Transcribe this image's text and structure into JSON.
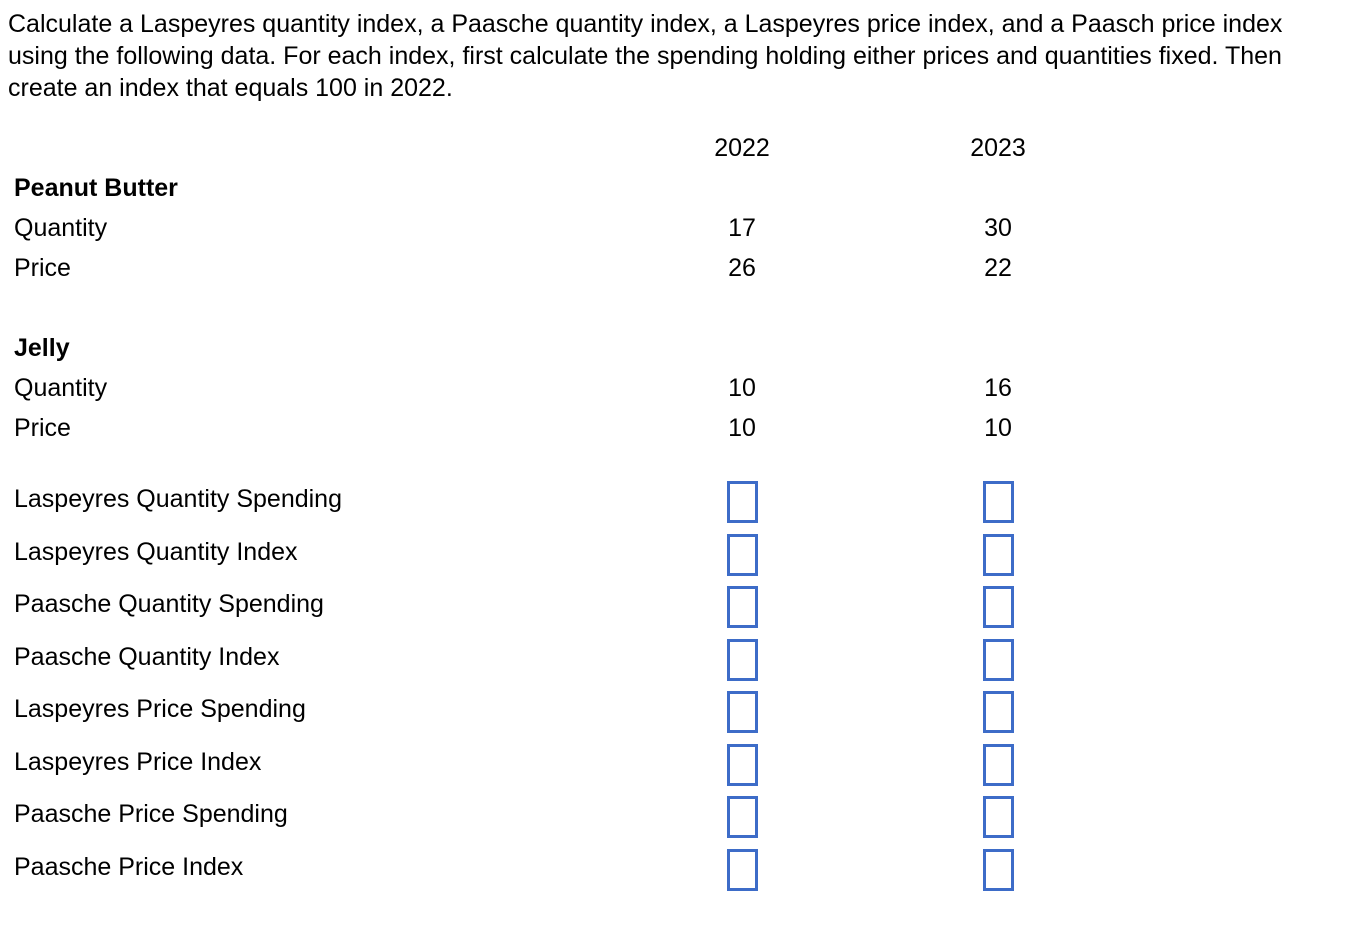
{
  "intro": {
    "line1": "Calculate a Laspeyres quantity index, a Paasche quantity index, a Laspeyres price index, and a Paasch price index",
    "line2": "using the following data. For each index, first calculate the spending holding either prices and quantities fixed. Then",
    "line3": "create an index that equals 100 in 2022."
  },
  "table": {
    "year_headers": [
      "2022",
      "2023"
    ],
    "sections": [
      {
        "name": "Peanut Butter",
        "rows": [
          {
            "label": "Quantity",
            "values": [
              "17",
              "30"
            ]
          },
          {
            "label": "Price",
            "values": [
              "26",
              "22"
            ]
          }
        ]
      },
      {
        "name": "Jelly",
        "rows": [
          {
            "label": "Quantity",
            "values": [
              "10",
              "16"
            ]
          },
          {
            "label": "Price",
            "values": [
              "10",
              "10"
            ]
          }
        ]
      }
    ]
  },
  "answer_rows": [
    {
      "label": "Laspeyres Quantity Spending"
    },
    {
      "label": "Laspeyres Quantity Index"
    },
    {
      "label": "Paasche Quantity Spending"
    },
    {
      "label": "Paasche Quantity Index"
    },
    {
      "label": "Laspeyres Price Spending"
    },
    {
      "label": "Laspeyres Price Index"
    },
    {
      "label": "Paasche Price Spending"
    },
    {
      "label": "Paasche Price Index"
    }
  ],
  "colors": {
    "answer_box_border": "#3D6CC8",
    "text": "#000000",
    "background": "#FFFFFF"
  }
}
